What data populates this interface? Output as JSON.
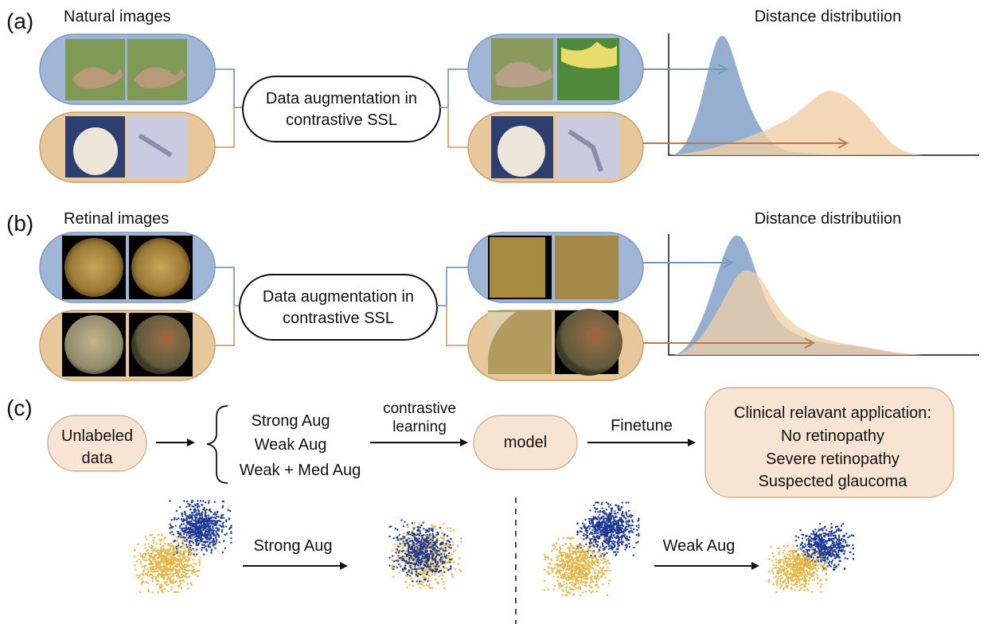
{
  "panel_a": {
    "letter": "(a)",
    "title": "Natural images",
    "aug_box": [
      "Data augmentation in",
      "contrastive SSL"
    ],
    "dist_title": "Distance distributiion"
  },
  "panel_b": {
    "letter": "(b)",
    "title": "Retinal images",
    "aug_box": [
      "Data augmentation in",
      "contrastive SSL"
    ],
    "dist_title": "Distance distributiion"
  },
  "panel_c": {
    "letter": "(c)",
    "input": [
      "Unlabeled",
      "data"
    ],
    "aug_options": [
      "Strong Aug",
      "Weak Aug",
      "Weak + Med Aug"
    ],
    "arrow_label": [
      "contrastive",
      "learning"
    ],
    "model": "model",
    "finetune": "Finetune",
    "application": [
      "Clinical relavant application:",
      "No retinopathy",
      "Severe retinopathy",
      "Suspected glaucoma"
    ]
  },
  "clusters": {
    "left_label": "Strong Aug",
    "right_label": "Weak Aug"
  },
  "colors": {
    "blue_pill": "#9fb6d6",
    "orange_pill": "#e8c79a",
    "blue_curve": "#8aa6cc",
    "orange_curve": "#f0cfa6",
    "blue_arrow": "#7a96b8",
    "orange_arrow": "#b97a4e",
    "peach_box": "#f8e4d2",
    "cluster_blue": "#1f3a93",
    "cluster_yellow": "#e3b74a"
  }
}
